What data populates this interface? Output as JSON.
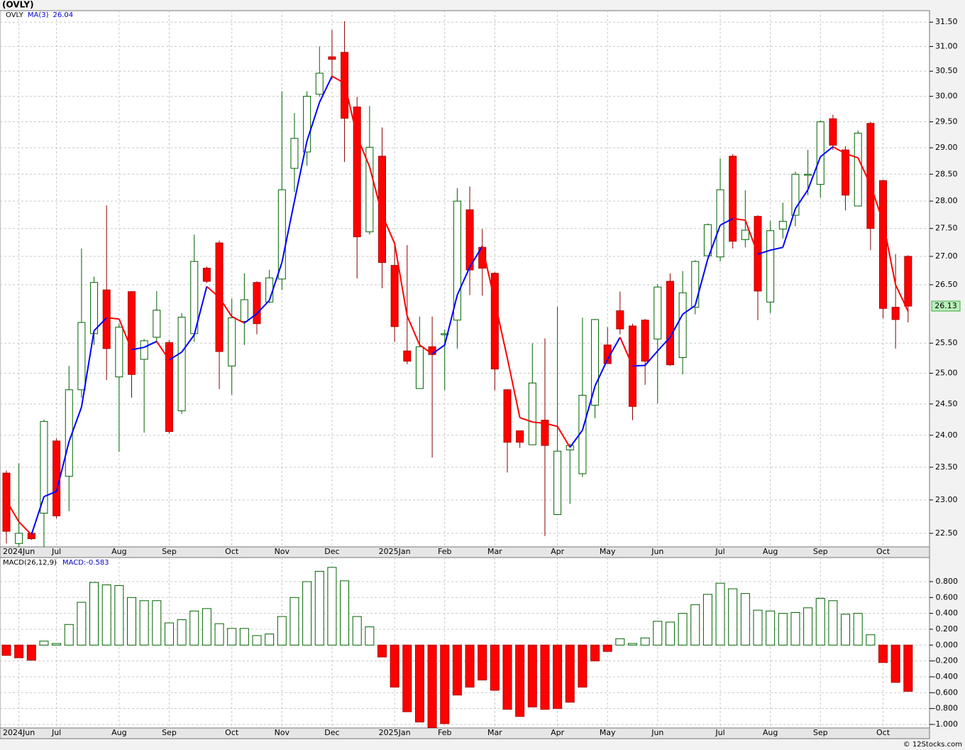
{
  "header": {
    "title": "(OVLY)"
  },
  "chart_data": [
    {
      "type": "candlestick",
      "symbol": "OVLY",
      "ma_name": "MA(3)",
      "categories": [
        null,
        "2024Jun",
        null,
        null,
        "Jul",
        null,
        null,
        null,
        null,
        "Aug",
        null,
        null,
        null,
        "Sep",
        null,
        null,
        null,
        null,
        "Oct",
        null,
        null,
        null,
        "Nov",
        null,
        null,
        null,
        "Dec",
        null,
        null,
        null,
        null,
        "2025Jan",
        null,
        null,
        null,
        "Feb",
        null,
        null,
        null,
        "Mar",
        null,
        null,
        null,
        null,
        "Apr",
        null,
        null,
        null,
        "May",
        null,
        null,
        null,
        "Jun",
        null,
        null,
        null,
        null,
        "Jul",
        null,
        null,
        null,
        "Aug",
        null,
        null,
        null,
        "Sep",
        null,
        null,
        null,
        null,
        "Oct",
        null,
        null
      ],
      "open": [
        23.41,
        22.35,
        22.5,
        22.8,
        23.91,
        23.36,
        24.73,
        25.66,
        26.41,
        24.94,
        26.38,
        25.23,
        25.6,
        25.51,
        24.39,
        25.66,
        26.79,
        27.24,
        25.12,
        25.87,
        26.54,
        26.2,
        26.6,
        28.61,
        28.92,
        30.04,
        30.79,
        30.88,
        29.79,
        27.44,
        28.84,
        26.84,
        25.37,
        24.75,
        25.44,
        25.65,
        25.89,
        27.84,
        27.16,
        26.7,
        24.73,
        24.07,
        23.85,
        24.24,
        22.78,
        23.77,
        23.4,
        24.48,
        25.47,
        26.05,
        25.79,
        25.89,
        25.57,
        26.56,
        25.26,
        26.11,
        27.01,
        26.99,
        28.84,
        27.3,
        27.72,
        26.2,
        27.49,
        27.74,
        28.48,
        28.31,
        29.56,
        28.96,
        27.91,
        29.47,
        28.38,
        26.11,
        27.0
      ],
      "high": [
        23.45,
        23.56,
        22.52,
        24.25,
        23.95,
        25.12,
        27.14,
        26.64,
        27.92,
        25.83,
        26.39,
        25.57,
        26.39,
        25.55,
        26.01,
        27.39,
        26.82,
        27.28,
        26.26,
        26.7,
        26.56,
        26.76,
        30.1,
        29.67,
        30.1,
        31.0,
        31.34,
        31.52,
        29.99,
        29.81,
        29.39,
        27.2,
        27.2,
        25.95,
        25.95,
        25.73,
        28.24,
        28.27,
        27.49,
        26.72,
        24.74,
        24.07,
        25.5,
        25.58,
        26.12,
        23.87,
        25.93,
        25.91,
        25.77,
        26.38,
        25.83,
        25.91,
        26.51,
        26.7,
        26.74,
        26.93,
        27.59,
        28.8,
        28.88,
        28.2,
        27.74,
        27.64,
        27.97,
        28.55,
        28.96,
        29.53,
        29.64,
        29.03,
        29.33,
        29.5,
        28.4,
        27.04,
        27.02
      ],
      "low": [
        22.35,
        22.3,
        22.4,
        22.3,
        22.72,
        22.83,
        24.6,
        25.47,
        24.89,
        23.74,
        24.6,
        24.04,
        25.5,
        24.03,
        24.34,
        25.52,
        26.53,
        24.74,
        24.65,
        25.47,
        25.65,
        26.18,
        26.41,
        28.17,
        28.66,
        29.99,
        30.34,
        28.73,
        26.61,
        27.39,
        26.44,
        25.52,
        25.15,
        24.75,
        23.65,
        24.72,
        25.41,
        26.32,
        26.31,
        24.72,
        23.42,
        23.8,
        23.85,
        22.46,
        22.78,
        22.94,
        23.35,
        24.27,
        25.16,
        25.65,
        24.24,
        24.81,
        24.51,
        25.12,
        24.98,
        25.99,
        27.01,
        26.91,
        27.14,
        27.16,
        25.89,
        26.01,
        27.32,
        27.54,
        28.11,
        28.06,
        28.96,
        27.83,
        27.91,
        27.11,
        25.92,
        25.41,
        25.85
      ],
      "close": [
        22.53,
        22.5,
        22.42,
        24.22,
        22.76,
        24.73,
        25.85,
        26.54,
        25.41,
        25.77,
        24.98,
        25.54,
        26.06,
        24.06,
        25.94,
        26.91,
        26.56,
        25.36,
        25.93,
        26.24,
        25.83,
        26.62,
        28.21,
        29.18,
        30.0,
        30.46,
        30.74,
        29.57,
        27.35,
        29.01,
        26.89,
        25.78,
        25.2,
        25.44,
        25.31,
        25.66,
        28.0,
        26.76,
        26.79,
        25.07,
        23.89,
        23.89,
        24.84,
        23.84,
        23.75,
        23.84,
        24.64,
        25.9,
        25.16,
        25.74,
        24.46,
        25.2,
        26.46,
        25.14,
        26.36,
        26.91,
        27.57,
        28.21,
        27.27,
        27.47,
        26.39,
        27.46,
        27.63,
        28.5,
        28.5,
        29.5,
        29.05,
        28.11,
        29.28,
        27.5,
        26.09,
        25.9,
        26.13
      ],
      "ma": [
        22.99,
        22.67,
        22.48,
        23.05,
        23.13,
        23.9,
        24.45,
        25.71,
        25.93,
        25.91,
        25.39,
        25.43,
        25.53,
        25.22,
        25.35,
        25.64,
        26.47,
        26.28,
        25.95,
        25.84,
        26.0,
        26.23,
        26.89,
        28.0,
        29.13,
        29.88,
        30.4,
        30.26,
        29.22,
        28.64,
        27.75,
        27.23,
        25.96,
        25.47,
        25.32,
        25.47,
        26.32,
        26.81,
        27.18,
        26.21,
        25.25,
        24.28,
        24.21,
        24.19,
        24.14,
        23.81,
        24.08,
        24.79,
        25.23,
        25.6,
        25.12,
        25.13,
        25.37,
        25.6,
        25.99,
        26.14,
        26.95,
        27.56,
        27.68,
        27.65,
        27.04,
        27.11,
        27.16,
        27.86,
        28.21,
        28.83,
        29.02,
        28.89,
        28.81,
        28.3,
        27.62,
        26.5,
        26.04
      ],
      "up_color": "#006400",
      "down_color": "#ff0000",
      "ma_up_color": "#0000ff",
      "ma_down_color": "#ff0000",
      "last_price_color": "#b8f0b8",
      "ylim": [
        22.3,
        31.74
      ],
      "log_scale": true,
      "grid": true,
      "yticks": [
        {
          "value": 22.5,
          "label": "22.50"
        },
        {
          "value": 23,
          "label": "23.00"
        },
        {
          "value": 23.5,
          "label": "23.50"
        },
        {
          "value": 24,
          "label": "24.00"
        },
        {
          "value": 24.5,
          "label": "24.50"
        },
        {
          "value": 25,
          "label": "25.00"
        },
        {
          "value": 25.5,
          "label": "25.50"
        },
        {
          "value": 26.5,
          "label": "26.50"
        },
        {
          "value": 27,
          "label": "27.00"
        },
        {
          "value": 27.5,
          "label": "27.50"
        },
        {
          "value": 28,
          "label": "28.00"
        },
        {
          "value": 28.5,
          "label": "28.50"
        },
        {
          "value": 29,
          "label": "29.00"
        },
        {
          "value": 29.5,
          "label": "29.50"
        },
        {
          "value": 30,
          "label": "30.00"
        },
        {
          "value": 30.5,
          "label": "30.50"
        },
        {
          "value": 31,
          "label": "31.00"
        },
        {
          "value": 31.5,
          "label": "31.50"
        }
      ]
    },
    {
      "type": "bar",
      "title": "MACD(26,12,9)",
      "value_prefix": "MACD:",
      "categories": [
        null,
        "2024Jun",
        null,
        null,
        "Jul",
        null,
        null,
        null,
        null,
        "Aug",
        null,
        null,
        null,
        "Sep",
        null,
        null,
        null,
        null,
        "Oct",
        null,
        null,
        null,
        "Nov",
        null,
        null,
        null,
        "Dec",
        null,
        null,
        null,
        null,
        "2025Jan",
        null,
        null,
        null,
        "Feb",
        null,
        null,
        null,
        "Mar",
        null,
        null,
        null,
        null,
        "Apr",
        null,
        null,
        null,
        "May",
        null,
        null,
        null,
        "Jun",
        null,
        null,
        null,
        null,
        "Jul",
        null,
        null,
        null,
        "Aug",
        null,
        null,
        null,
        "Sep",
        null,
        null,
        null,
        null,
        "Oct",
        null,
        null
      ],
      "values": [
        -0.13,
        -0.16,
        -0.19,
        0.05,
        0.02,
        0.26,
        0.54,
        0.79,
        0.76,
        0.75,
        0.6,
        0.56,
        0.56,
        0.28,
        0.32,
        0.43,
        0.46,
        0.27,
        0.21,
        0.21,
        0.12,
        0.14,
        0.36,
        0.6,
        0.8,
        0.93,
        0.98,
        0.81,
        0.36,
        0.23,
        -0.15,
        -0.53,
        -0.84,
        -0.97,
        -1.04,
        -0.99,
        -0.63,
        -0.53,
        -0.44,
        -0.57,
        -0.81,
        -0.9,
        -0.78,
        -0.81,
        -0.8,
        -0.72,
        -0.53,
        -0.2,
        -0.08,
        0.08,
        0.02,
        0.09,
        0.3,
        0.29,
        0.4,
        0.51,
        0.64,
        0.78,
        0.71,
        0.65,
        0.44,
        0.43,
        0.4,
        0.41,
        0.47,
        0.59,
        0.56,
        0.39,
        0.4,
        0.13,
        -0.22,
        -0.47,
        -0.583
      ],
      "up_color": "#006400",
      "down_color": "#ff0000",
      "ylim": [
        -1.045,
        1.104
      ],
      "grid": true,
      "yticks": [
        {
          "value": 0.8,
          "label": "0.800"
        },
        {
          "value": 0.6,
          "label": "0.600"
        },
        {
          "value": 0.4,
          "label": "0.400"
        },
        {
          "value": 0.2,
          "label": "0.200"
        },
        {
          "value": 0,
          "label": "0.000"
        },
        {
          "value": -0.2,
          "label": "-0.200"
        },
        {
          "value": -0.4,
          "label": "-0.400"
        },
        {
          "value": -0.6,
          "label": "-0.600"
        },
        {
          "value": -0.8,
          "label": "-0.800"
        },
        {
          "value": -1,
          "label": "-1.000"
        }
      ]
    }
  ],
  "footer": "© 12Stocks.com"
}
